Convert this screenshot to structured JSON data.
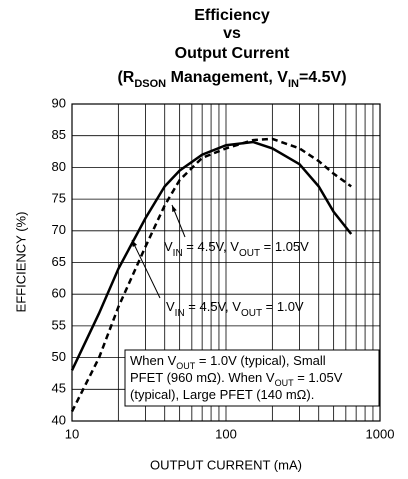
{
  "chart_data": {
    "type": "line",
    "title": [
      "Efficiency",
      "vs",
      "Output Current"
    ],
    "title_rich": [
      {
        "text": "(R"
      },
      {
        "text": "DSON",
        "sub": true
      },
      {
        "text": " Management, V"
      },
      {
        "text": "IN",
        "sub": true
      },
      {
        "text": "=4.5V)"
      }
    ],
    "xlabel": "OUTPUT CURRENT (mA)",
    "ylabel": "EFFICIENCY (%)",
    "xscale": "log",
    "xlim": [
      10,
      1000
    ],
    "xticks": [
      10,
      100,
      1000
    ],
    "xminorticks": [
      20,
      30,
      40,
      50,
      60,
      70,
      80,
      90,
      200,
      300,
      400,
      500,
      600,
      700,
      800,
      900
    ],
    "ylim": [
      40,
      90
    ],
    "yticks": [
      40,
      45,
      50,
      55,
      60,
      65,
      70,
      75,
      80,
      85,
      90
    ],
    "grid": true,
    "series": [
      {
        "color": "#000000",
        "dash": false,
        "x": [
          10,
          15,
          20,
          30,
          40,
          50,
          70,
          100,
          150,
          200,
          300,
          400,
          500,
          650
        ],
        "values": [
          48,
          57,
          64,
          72,
          77,
          79.5,
          82,
          83.5,
          84,
          83,
          80.5,
          77,
          73,
          69.5
        ]
      },
      {
        "color": "#000000",
        "dash": true,
        "x": [
          10,
          15,
          20,
          30,
          40,
          50,
          70,
          100,
          150,
          200,
          300,
          400,
          500,
          650
        ],
        "values": [
          41.5,
          50,
          58,
          67.5,
          74,
          78,
          81.5,
          83,
          84.3,
          84.5,
          83,
          81,
          79,
          77
        ]
      }
    ],
    "annotations": [
      [
        {
          "text": "V"
        },
        {
          "text": "IN",
          "sub": true
        },
        {
          "text": " = 4.5V, V"
        },
        {
          "text": "OUT",
          "sub": true
        },
        {
          "text": " = 1.05V"
        }
      ],
      [
        {
          "text": "V"
        },
        {
          "text": "IN",
          "sub": true
        },
        {
          "text": " = 4.5V, V"
        },
        {
          "text": "OUT",
          "sub": true
        },
        {
          "text": " = 1.0V"
        }
      ]
    ],
    "note": [
      [
        {
          "text": "When V"
        },
        {
          "text": "OUT",
          "sub": true
        },
        {
          "text": " = 1.0V (typical), Small"
        }
      ],
      [
        {
          "text": "PFET (960 mΩ). When V"
        },
        {
          "text": "OUT",
          "sub": true
        },
        {
          "text": " = 1.05V"
        }
      ],
      [
        {
          "text": "(typical), Large PFET (140 mΩ)."
        }
      ]
    ]
  }
}
